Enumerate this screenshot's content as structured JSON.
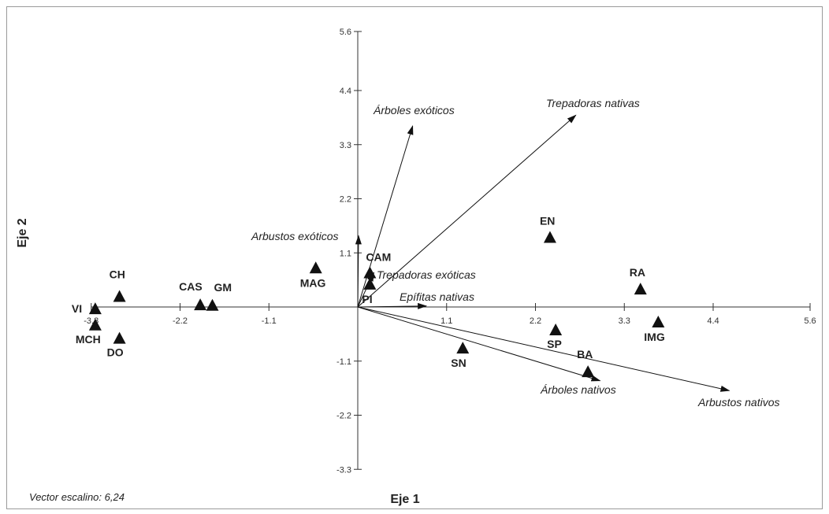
{
  "chart_data": {
    "type": "scatter",
    "title": "",
    "xlabel": "Eje 1",
    "ylabel": "Eje 2",
    "xlim": [
      -3.3,
      5.6
    ],
    "ylim": [
      -3.3,
      5.6
    ],
    "x_ticks": [
      "-3.3",
      "-2.2",
      "-1.1",
      "1.1",
      "2.2",
      "3.3",
      "4.4",
      "5.6"
    ],
    "y_ticks": [
      "5.6",
      "4.4",
      "3.3",
      "2.2",
      "1.1",
      "-1.1",
      "-2.2",
      "-3.3"
    ],
    "note": "Vector escalino: 6,24",
    "points": [
      {
        "label": "VI",
        "x": -3.25,
        "y": -0.05
      },
      {
        "label": "CH",
        "x": -2.95,
        "y": 0.2
      },
      {
        "label": "MCH",
        "x": -3.25,
        "y": -0.38
      },
      {
        "label": "DO",
        "x": -2.95,
        "y": -0.65
      },
      {
        "label": "CAS",
        "x": -1.95,
        "y": 0.03
      },
      {
        "label": "GM",
        "x": -1.8,
        "y": 0.02
      },
      {
        "label": "MAG",
        "x": -0.52,
        "y": 0.78
      },
      {
        "label": "CAM",
        "x": 0.15,
        "y": 0.68
      },
      {
        "label": "PI",
        "x": 0.15,
        "y": 0.45
      },
      {
        "label": "EN",
        "x": 2.38,
        "y": 1.4
      },
      {
        "label": "RA",
        "x": 3.5,
        "y": 0.35
      },
      {
        "label": "SP",
        "x": 2.45,
        "y": -0.48
      },
      {
        "label": "IMG",
        "x": 3.72,
        "y": -0.32
      },
      {
        "label": "SN",
        "x": 1.3,
        "y": -0.85
      },
      {
        "label": "BA",
        "x": 2.85,
        "y": -1.33
      }
    ],
    "vectors": [
      {
        "label": "Árboles exóticos",
        "x": 0.68,
        "y": 3.68
      },
      {
        "label": "Trepadoras nativas",
        "x": 2.7,
        "y": 3.9
      },
      {
        "label": "Arbustos exóticos",
        "x": 0.01,
        "y": 1.45
      },
      {
        "label": "Trepadoras exóticas",
        "x": 0.2,
        "y": 0.7
      },
      {
        "label": "Epífitas nativas",
        "x": 0.85,
        "y": 0.02
      },
      {
        "label": "Árboles nativos",
        "x": 3.0,
        "y": -1.5
      },
      {
        "label": "Arbustos nativos",
        "x": 4.6,
        "y": -1.7
      }
    ]
  }
}
